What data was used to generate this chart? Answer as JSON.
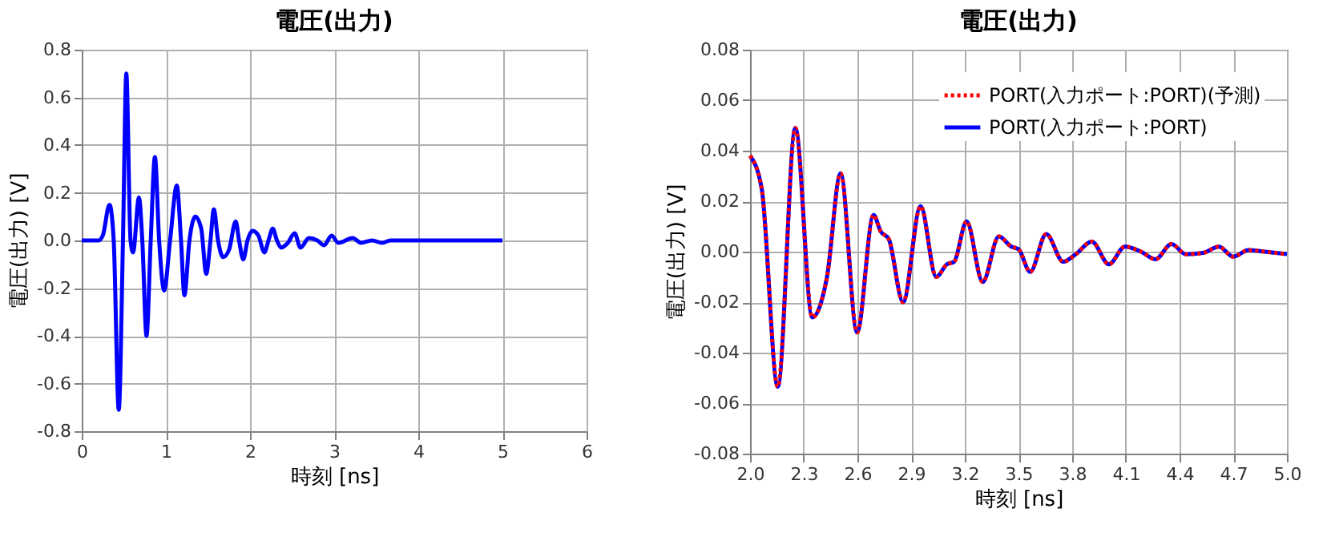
{
  "chart_data": [
    {
      "type": "line",
      "title": "電圧(出力)",
      "xlabel": "時刻 [ns]",
      "ylabel": "電圧(出力) [V]",
      "xlim": [
        0,
        6
      ],
      "ylim": [
        -0.8,
        0.8
      ],
      "xticks": [
        0,
        1,
        2,
        3,
        4,
        5,
        6
      ],
      "yticks": [
        -0.8,
        -0.6,
        -0.4,
        -0.2,
        {
          "value": 0,
          "label": "0.0"
        },
        0.2,
        0.4,
        0.6,
        0.8
      ],
      "grid": true,
      "legend": false,
      "marker": "none",
      "series": [
        {
          "color": "#0000ff",
          "line_style": "solid",
          "x": [
            0,
            0.2,
            0.25,
            0.33,
            0.38,
            0.44,
            0.49,
            0.53,
            0.58,
            0.61,
            0.68,
            0.72,
            0.77,
            0.82,
            0.87,
            0.92,
            0.98,
            1.05,
            1.13,
            1.18,
            1.22,
            1.28,
            1.35,
            1.42,
            1.48,
            1.53,
            1.57,
            1.62,
            1.68,
            1.75,
            1.83,
            1.87,
            1.92,
            1.97,
            2.03,
            2.1,
            2.17,
            2.22,
            2.27,
            2.32,
            2.37,
            2.45,
            2.53,
            2.6,
            2.7,
            2.8,
            2.88,
            2.97,
            3.05,
            3.22,
            3.32,
            3.45,
            3.57,
            3.67,
            3.8,
            4.0,
            4.2,
            5.0
          ],
          "values": [
            0,
            0,
            0.02,
            0.15,
            0.0,
            -0.71,
            0.0,
            0.7,
            0.0,
            -0.05,
            0.18,
            0.0,
            -0.4,
            0.0,
            0.35,
            0.0,
            -0.21,
            0.0,
            0.23,
            0.0,
            -0.23,
            0.0,
            0.1,
            0.05,
            -0.14,
            0.0,
            0.13,
            0.0,
            -0.07,
            -0.04,
            0.08,
            0.0,
            -0.08,
            0.0,
            0.04,
            0.02,
            -0.05,
            0.0,
            0.05,
            0.0,
            -0.03,
            -0.01,
            0.03,
            -0.03,
            0.01,
            0.0,
            -0.02,
            0.02,
            -0.01,
            0.01,
            -0.01,
            0.0,
            -0.01,
            0.0,
            0.0,
            0.0,
            0.0,
            0.0
          ]
        }
      ]
    },
    {
      "type": "line",
      "title": "電圧(出力)",
      "xlabel": "時刻 [ns]",
      "ylabel": "電圧(出力) [V]",
      "xlim": [
        2,
        5
      ],
      "ylim": [
        -0.08,
        0.08
      ],
      "xticks": [
        {
          "value": 2,
          "label": "2.0"
        },
        2.3,
        2.6,
        2.9,
        3.2,
        3.5,
        3.8,
        4.1,
        4.4,
        4.7,
        {
          "value": 5,
          "label": "5.0"
        }
      ],
      "yticks": [
        -0.08,
        -0.06,
        -0.04,
        -0.02,
        {
          "value": 0,
          "label": "0.00"
        },
        0.02,
        0.04,
        0.06,
        0.08
      ],
      "grid": true,
      "legend": "top right",
      "marker": "none",
      "series": [
        {
          "name": "PORT(入力ポート:PORT)(予測)",
          "color": "#ff0000",
          "line_style": "dotted",
          "x": [
            2.0,
            2.065,
            2.155,
            2.253,
            2.348,
            2.43,
            2.506,
            2.598,
            2.69,
            2.73,
            2.775,
            2.855,
            2.953,
            3.04,
            3.1,
            3.14,
            3.21,
            3.3,
            3.39,
            3.46,
            3.5,
            3.565,
            3.655,
            3.75,
            3.82,
            3.91,
            4.005,
            4.095,
            4.185,
            4.265,
            4.355,
            4.435,
            4.53,
            4.62,
            4.7,
            4.785,
            4.875,
            5.0
          ],
          "values": [
            0.038,
            0.025,
            -0.0535,
            0.049,
            -0.026,
            -0.01,
            0.031,
            -0.032,
            0.0145,
            0.008,
            0.005,
            -0.02,
            0.018,
            -0.01,
            -0.005,
            -0.004,
            0.012,
            -0.012,
            0.006,
            0.002,
            0.001,
            -0.008,
            0.007,
            -0.004,
            -0.001,
            0.004,
            -0.005,
            0.002,
            0.0,
            -0.003,
            0.003,
            -0.001,
            -0.0005,
            0.002,
            -0.002,
            0.0006,
            0.0,
            -0.001
          ]
        },
        {
          "name": "PORT(入力ポート:PORT)",
          "color": "#0000ff",
          "line_style": "solid",
          "x": [
            2.0,
            2.065,
            2.155,
            2.253,
            2.348,
            2.43,
            2.506,
            2.598,
            2.69,
            2.73,
            2.775,
            2.855,
            2.953,
            3.04,
            3.1,
            3.14,
            3.21,
            3.3,
            3.39,
            3.46,
            3.5,
            3.565,
            3.655,
            3.75,
            3.82,
            3.91,
            4.005,
            4.095,
            4.185,
            4.265,
            4.355,
            4.435,
            4.53,
            4.62,
            4.7,
            4.785,
            4.875,
            5.0
          ],
          "values": [
            0.038,
            0.025,
            -0.0535,
            0.049,
            -0.026,
            -0.01,
            0.031,
            -0.032,
            0.0145,
            0.008,
            0.005,
            -0.02,
            0.018,
            -0.01,
            -0.005,
            -0.004,
            0.012,
            -0.012,
            0.006,
            0.002,
            0.001,
            -0.008,
            0.007,
            -0.004,
            -0.001,
            0.004,
            -0.005,
            0.002,
            0.0,
            -0.003,
            0.003,
            -0.001,
            -0.0005,
            0.002,
            -0.002,
            0.0006,
            0.0,
            -0.001
          ]
        }
      ]
    }
  ]
}
